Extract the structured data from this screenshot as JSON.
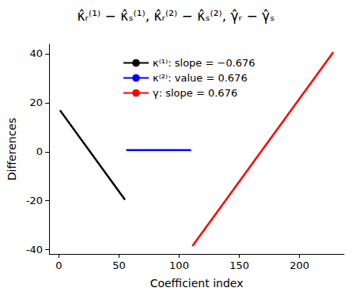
{
  "chart_data": {
    "type": "line",
    "title": "κ̂ᵣ⁽¹⁾ − κ̂ₛ⁽¹⁾, κ̂ᵣ⁽²⁾ − κ̂ₛ⁽²⁾, γ̂ᵣ − γ̂ₛ",
    "x_label": "Coefficient index",
    "y_label": "Differences",
    "series": [
      {
        "name": "κ⁽¹⁾: slope = −0.676",
        "color": "#000000",
        "x": [
          1,
          55
        ],
        "values": [
          16.9,
          -19.6
        ]
      },
      {
        "name": "κ⁽²⁾: value = 0.676",
        "color": "#0000ff",
        "x": [
          56,
          110
        ],
        "values": [
          0.676,
          0.676
        ]
      },
      {
        "name": "γ: slope = 0.676",
        "color": "#ff0000",
        "x": [
          111,
          228
        ],
        "values": [
          -38.5,
          40.6
        ]
      }
    ],
    "xlim": [
      -8,
      237
    ],
    "xticks": [
      0,
      50,
      100,
      150,
      200
    ],
    "ylim": [
      -41.7,
      43.8
    ],
    "yticks": [
      -40,
      -20,
      0,
      20,
      40
    ],
    "grid": false,
    "legend": "top"
  }
}
